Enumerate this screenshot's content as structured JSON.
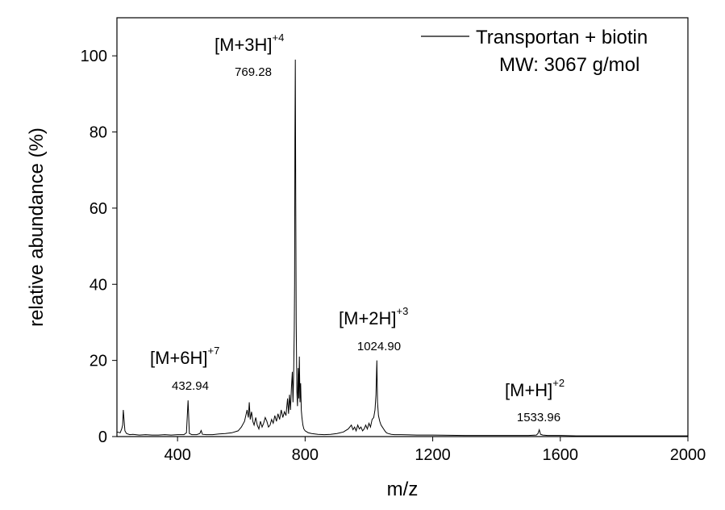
{
  "chart_data": {
    "type": "line",
    "xlabel": "m/z",
    "ylabel": "relative abundance (%)",
    "xlim": [
      210,
      2000
    ],
    "ylim": [
      0,
      110
    ],
    "xticks": [
      400,
      800,
      1200,
      1600,
      2000
    ],
    "yticks": [
      0,
      20,
      40,
      60,
      80,
      100
    ],
    "grid": false,
    "legend": {
      "placement": "top-right",
      "entries": [
        "Transportan + biotin",
        "MW: 3067 g/mol"
      ]
    },
    "series": [
      {
        "name": "Transportan + biotin",
        "x": [
          210,
          220,
          225,
          228,
          230,
          235,
          240,
          250,
          260,
          280,
          300,
          320,
          340,
          360,
          380,
          400,
          420,
          428,
          432.94,
          437,
          445,
          460,
          470,
          474,
          478,
          490,
          510,
          530,
          550,
          570,
          590,
          600,
          610,
          618,
          622,
          625,
          628,
          632,
          636,
          640,
          645,
          650,
          655,
          660,
          665,
          670,
          675,
          680,
          685,
          690,
          695,
          700,
          705,
          710,
          715,
          720,
          725,
          730,
          735,
          740,
          745,
          748,
          751,
          754,
          757,
          760,
          762,
          764,
          766,
          767,
          768,
          769.28,
          770.5,
          772,
          774,
          776,
          778,
          780,
          782,
          784,
          786,
          788,
          790,
          793,
          796,
          800,
          810,
          820,
          840,
          860,
          880,
          900,
          920,
          935,
          945,
          950,
          955,
          960,
          965,
          970,
          975,
          980,
          985,
          990,
          995,
          1000,
          1005,
          1010,
          1015,
          1019,
          1022,
          1024.9,
          1027,
          1030,
          1034,
          1038,
          1042,
          1046,
          1050,
          1055,
          1060,
          1070,
          1080,
          1100,
          1150,
          1200,
          1300,
          1400,
          1500,
          1525,
          1530,
          1533.96,
          1538,
          1545,
          1560,
          1600,
          1650,
          1700,
          1800,
          1900,
          2000
        ],
        "y": [
          1.2,
          1.0,
          2.0,
          3.0,
          7.0,
          1.5,
          0.8,
          0.5,
          0.6,
          0.4,
          0.5,
          0.4,
          0.4,
          0.5,
          0.4,
          0.5,
          0.5,
          1.0,
          9.5,
          0.8,
          0.5,
          0.5,
          0.8,
          1.6,
          0.6,
          0.5,
          0.5,
          0.7,
          0.8,
          1.0,
          1.5,
          2.5,
          4.0,
          7.0,
          5.0,
          9.0,
          4.5,
          6.5,
          4.0,
          3.0,
          5.0,
          3.0,
          2.0,
          4.0,
          2.5,
          3.5,
          5.0,
          4.0,
          2.5,
          3.0,
          4.5,
          3.5,
          5.5,
          4.0,
          6.0,
          4.5,
          7.0,
          5.0,
          6.5,
          5.5,
          10.0,
          6.0,
          11.0,
          7.0,
          13.0,
          17.0,
          9.0,
          16.0,
          28.0,
          40.0,
          78.0,
          99.0,
          64.0,
          30.0,
          12.0,
          8.0,
          18.0,
          10.0,
          21.0,
          9.0,
          14.0,
          7.0,
          5.0,
          3.0,
          2.0,
          1.5,
          1.0,
          0.8,
          0.6,
          0.5,
          0.6,
          0.8,
          1.2,
          2.0,
          3.0,
          1.8,
          2.5,
          1.5,
          3.0,
          2.0,
          2.5,
          1.5,
          2.0,
          3.0,
          2.0,
          3.5,
          2.5,
          4.5,
          5.0,
          7.0,
          11.0,
          20.0,
          9.0,
          5.5,
          4.0,
          3.0,
          2.5,
          2.0,
          1.5,
          1.0,
          0.8,
          0.6,
          0.5,
          0.5,
          0.4,
          0.4,
          0.3,
          0.3,
          0.3,
          0.4,
          0.8,
          1.8,
          0.6,
          0.4,
          0.3,
          0.3,
          0.2,
          0.2,
          0.2,
          0.2,
          0.2
        ]
      }
    ],
    "annotations": [
      {
        "ion": "[M+3H]",
        "charge": "+4",
        "mz_label": "769.28",
        "x": 769.28,
        "y": 99
      },
      {
        "ion": "[M+6H]",
        "charge": "+7",
        "mz_label": "432.94",
        "x": 432.94,
        "y": 9.5
      },
      {
        "ion": "[M+2H]",
        "charge": "+3",
        "mz_label": "1024.90",
        "x": 1024.9,
        "y": 20
      },
      {
        "ion": "[M+H]",
        "charge": "+2",
        "mz_label": "1533.96",
        "x": 1533.96,
        "y": 1.8
      }
    ]
  }
}
